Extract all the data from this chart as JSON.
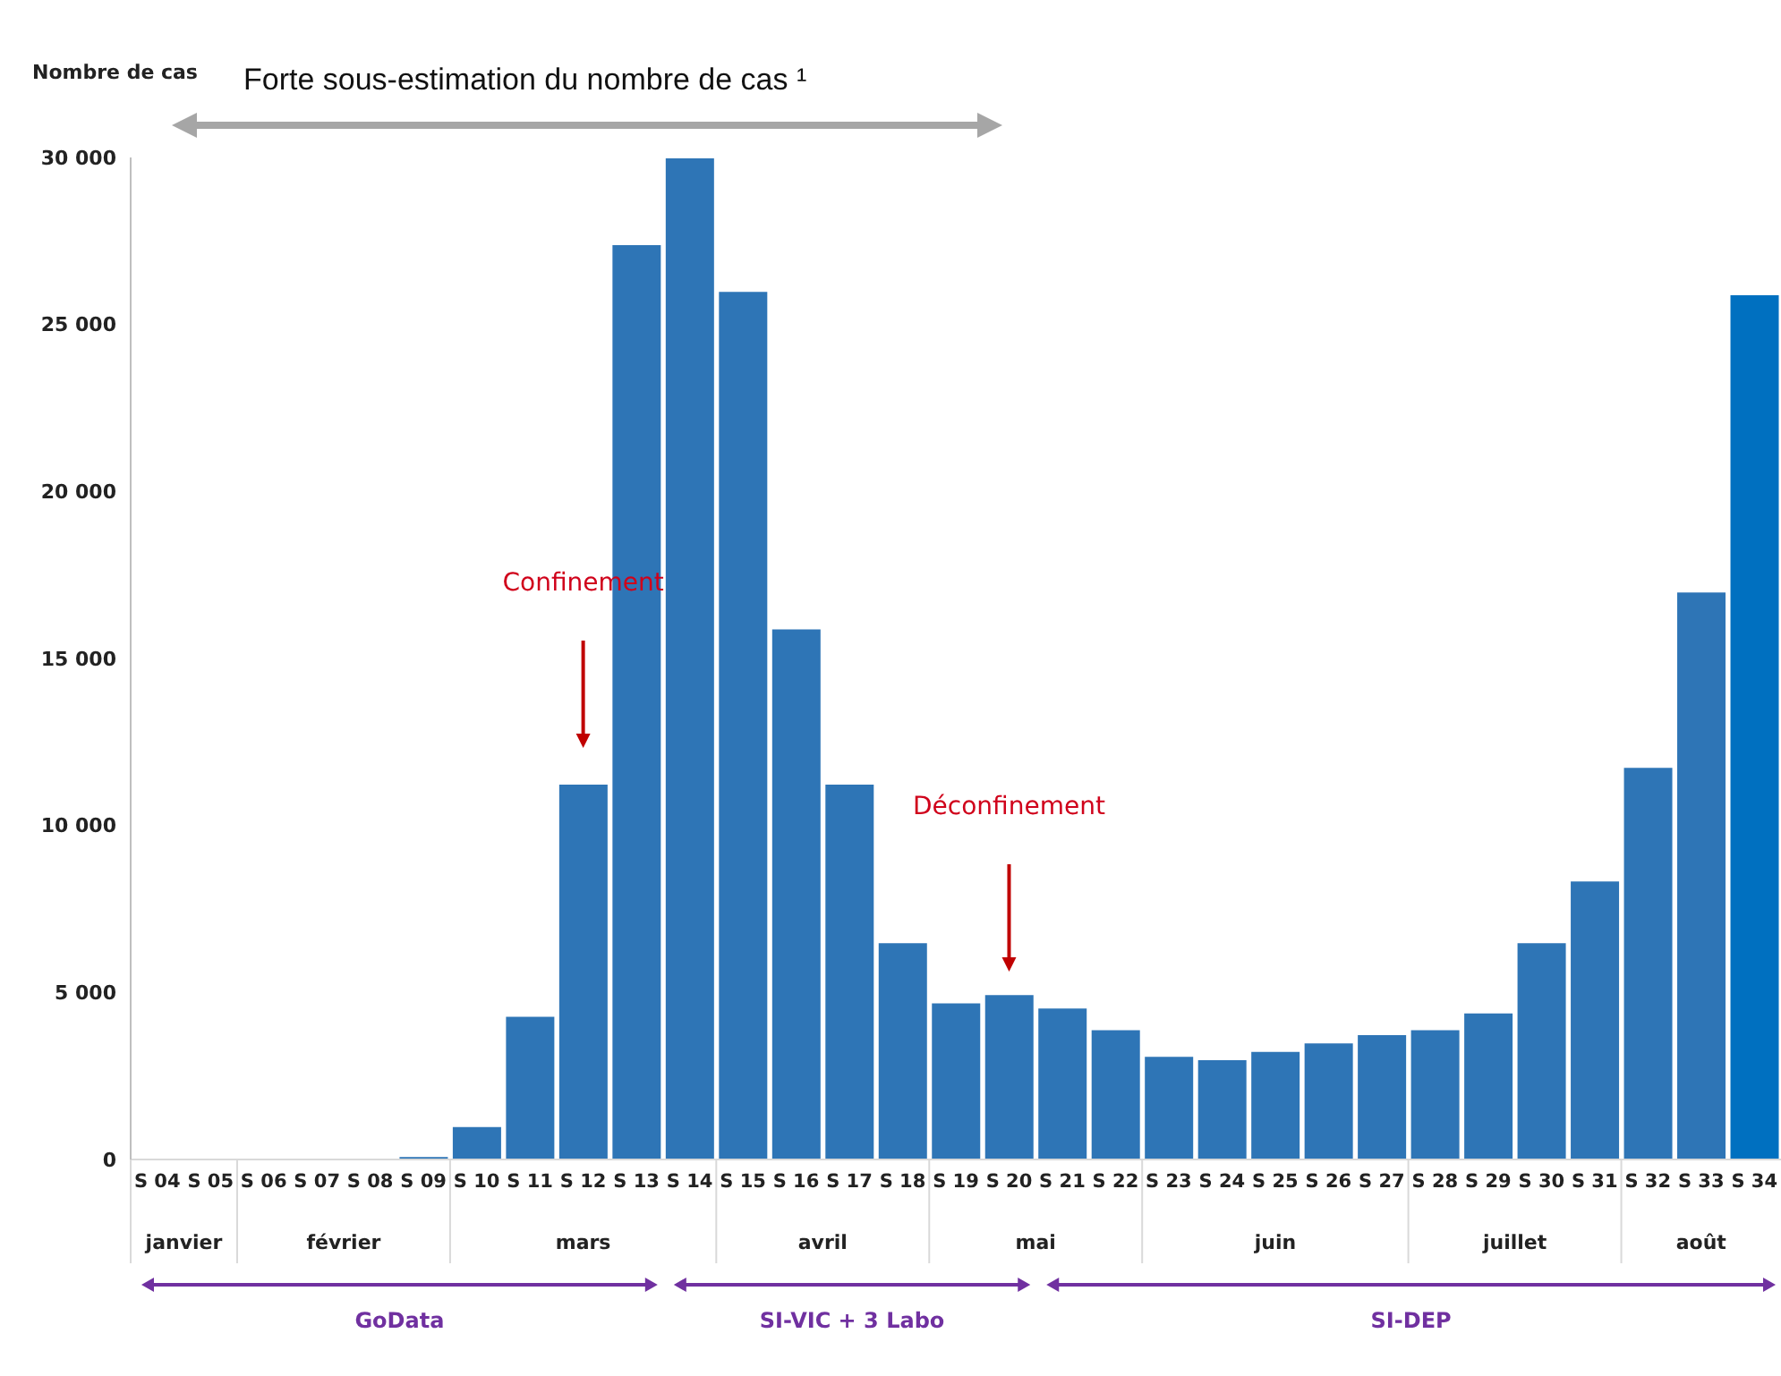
{
  "chart_data": {
    "type": "bar",
    "ylabel": "Nombre de cas",
    "categories": [
      "S 04",
      "S 05",
      "S 06",
      "S 07",
      "S 08",
      "S 09",
      "S 10",
      "S 11",
      "S 12",
      "S 13",
      "S 14",
      "S 15",
      "S 16",
      "S 17",
      "S 18",
      "S 19",
      "S 20",
      "S 21",
      "S 22",
      "S 23",
      "S 24",
      "S 25",
      "S 26",
      "S 27",
      "S 28",
      "S 29",
      "S 30",
      "S 31",
      "S 32",
      "S 33",
      "S 34"
    ],
    "values": [
      0,
      0,
      0,
      0,
      0,
      100,
      1000,
      4300,
      11250,
      27400,
      30000,
      26000,
      15900,
      11250,
      6500,
      4700,
      4950,
      4550,
      3900,
      3100,
      3000,
      3250,
      3500,
      3750,
      3900,
      4400,
      6500,
      8350,
      11750,
      17000,
      25900
    ],
    "colors": [
      "#2e75b6",
      "#2e75b6",
      "#2e75b6",
      "#2e75b6",
      "#2e75b6",
      "#2e75b6",
      "#2e75b6",
      "#2e75b6",
      "#2e75b6",
      "#2e75b6",
      "#2e75b6",
      "#2e75b6",
      "#2e75b6",
      "#2e75b6",
      "#2e75b6",
      "#2e75b6",
      "#2e75b6",
      "#2e75b6",
      "#2e75b6",
      "#2e75b6",
      "#2e75b6",
      "#2e75b6",
      "#2e75b6",
      "#2e75b6",
      "#2e75b6",
      "#2e75b6",
      "#2e75b6",
      "#2e75b6",
      "#2e75b6",
      "#2e75b6",
      "#0070c0"
    ],
    "ylim": [
      0,
      30000
    ],
    "yticks": [
      {
        "value": 0,
        "label": "0"
      },
      {
        "value": 5000,
        "label": "5 000"
      },
      {
        "value": 10000,
        "label": "10 000"
      },
      {
        "value": 15000,
        "label": "15 000"
      },
      {
        "value": 20000,
        "label": "20 000"
      },
      {
        "value": 25000,
        "label": "25 000"
      },
      {
        "value": 30000,
        "label": "30 000"
      }
    ],
    "annotations": [
      "Forte sous-estimation du nombre de cas ¹",
      "Confinement",
      "Déconfinement",
      "janvier",
      "février",
      "mars",
      "avril",
      "mai",
      "juin",
      "juillet",
      "août",
      "GoData",
      "SI-VIC + 3 Labo",
      "SI-DEP"
    ]
  }
}
